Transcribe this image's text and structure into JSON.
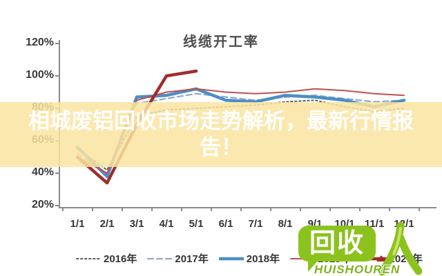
{
  "banner": {
    "text": "相城废铝回收市场走势解析，最新行情报告！",
    "band_color": "rgba(250,228,160,0.85)",
    "text_color": "#ffffff"
  },
  "chart_data": {
    "type": "line",
    "title": "线缆开工率",
    "categories": [
      "1/1",
      "2/1",
      "3/1",
      "4/1",
      "5/1",
      "6/1",
      "7/1",
      "8/1",
      "9/1",
      "10/1",
      "11/1",
      "12/1"
    ],
    "series": [
      {
        "name": "2016年",
        "style": "dotted",
        "color": "#5a5a5a",
        "width": 2,
        "values": [
          55,
          42,
          75,
          79,
          80,
          81,
          82,
          84,
          85,
          81,
          78,
          80
        ]
      },
      {
        "name": "2017年",
        "style": "dashed",
        "color": "#8ea9c9",
        "width": 2.2,
        "values": [
          52,
          40,
          83,
          86,
          89,
          87,
          85,
          87,
          88,
          86,
          84,
          85
        ]
      },
      {
        "name": "2018年",
        "style": "solid",
        "color": "#4a8fc4",
        "width": 4.5,
        "values": [
          56,
          38,
          87,
          88,
          92,
          85,
          84,
          88,
          87,
          85,
          81,
          85
        ]
      },
      {
        "name": "2019年",
        "style": "solid",
        "color": "#c0504d",
        "width": 2,
        "values": [
          50,
          40,
          85,
          90,
          92,
          90,
          89,
          90,
          92,
          91,
          89,
          88
        ]
      },
      {
        "name": "2020年",
        "style": "solid",
        "color": "#a02c2c",
        "width": 4.5,
        "marker": "triangle",
        "values": [
          50,
          34,
          70,
          100,
          103,
          null,
          null,
          null,
          null,
          null,
          null,
          null
        ]
      }
    ],
    "ylim": [
      20,
      120
    ],
    "ytick_labels": [
      "120%",
      "100%",
      "80%",
      "60%",
      "40%",
      "20%"
    ],
    "ytick_values": [
      120,
      100,
      80,
      60,
      40,
      20
    ],
    "grid": false,
    "legend_position": "bottom",
    "axis_color": "#8a8a8a"
  },
  "watermark": {
    "bubble_text": "回收",
    "person_glyph": "人",
    "brand": "HUISHOUREN",
    "green": "#8cc21e"
  }
}
